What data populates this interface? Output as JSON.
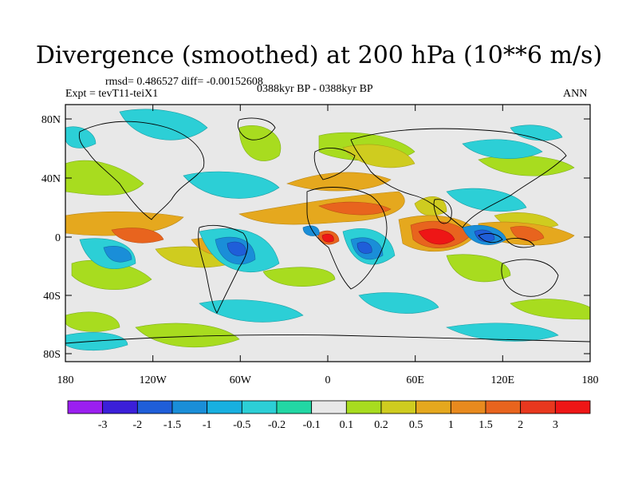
{
  "title": "Divergence (smoothed) at 200 hPa (10**6 m/s)",
  "stats_line": "rmsd= 0.486527 diff= -0.00152608",
  "experiment_label": "Expt = tevT11-teiX1",
  "period_label": "0388kyr BP - 0388kyr BP",
  "season_label": "ANN",
  "lat_labels": [
    "80N",
    "40N",
    "0",
    "40S",
    "80S"
  ],
  "lon_labels": [
    "180",
    "120W",
    "60W",
    "0",
    "60E",
    "120E",
    "180"
  ],
  "colorbar": {
    "labels": [
      "-3",
      "-2",
      "-1.5",
      "-1",
      "-0.5",
      "-0.2",
      "-0.1",
      "0.1",
      "0.2",
      "0.5",
      "1",
      "1.5",
      "2",
      "3"
    ],
    "colors": [
      "#9b1ff0",
      "#3b1fd9",
      "#1f5ed9",
      "#1a8ed8",
      "#18b0e0",
      "#2ccfd6",
      "#22d7a4",
      "#e8e8e8",
      "#a8dc1f",
      "#cfcc1f",
      "#e5a81e",
      "#e88a1e",
      "#e8641e",
      "#e8381e",
      "#ee1616"
    ]
  }
}
